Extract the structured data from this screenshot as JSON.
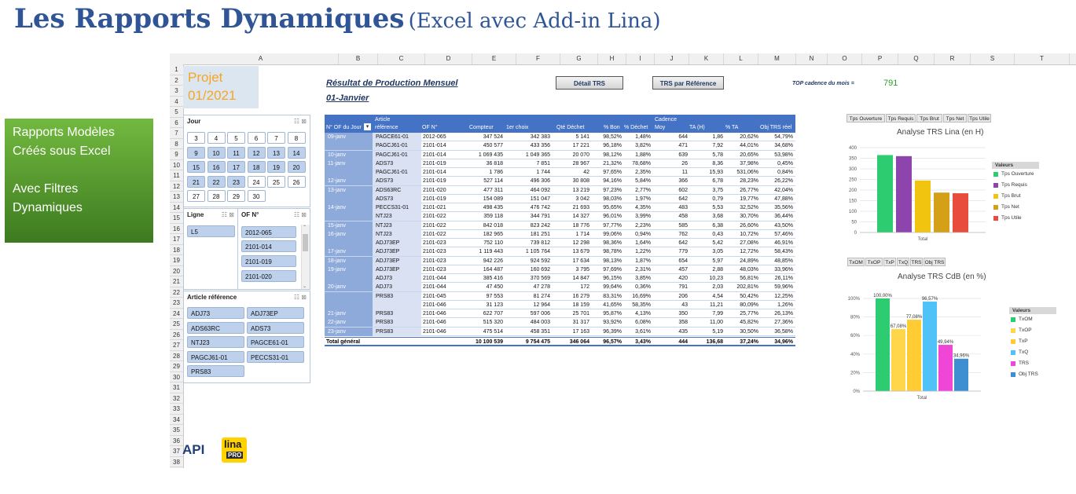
{
  "title": {
    "main": "Les Rapports Dynamiques",
    "sub": "(Excel avec Add-in Lina)"
  },
  "green_box": {
    "line1": "Rapports Modèles",
    "line2": "Créés sous Excel",
    "line3": "Avec Filtres",
    "line4": "Dynamiques"
  },
  "columns": [
    "A",
    "B",
    "C",
    "D",
    "E",
    "F",
    "G",
    "H",
    "I",
    "J",
    "K",
    "L",
    "M",
    "N",
    "O",
    "P",
    "Q",
    "R",
    "S",
    "T"
  ],
  "rows": [
    "1",
    "2",
    "3",
    "4",
    "5",
    "6",
    "7",
    "8",
    "9",
    "10",
    "11",
    "12",
    "13",
    "14",
    "15",
    "16",
    "17",
    "18",
    "19",
    "20",
    "21",
    "22",
    "23",
    "24",
    "25",
    "26",
    "27",
    "28",
    "29",
    "30",
    "31",
    "32",
    "33",
    "34",
    "35",
    "36",
    "37",
    "38"
  ],
  "projet": {
    "line1": "Projet",
    "line2": "01/2021"
  },
  "slicers": {
    "jour": {
      "title": "Jour",
      "items": [
        "3",
        "4",
        "5",
        "6",
        "7",
        "8",
        "9",
        "10",
        "11",
        "12",
        "13",
        "14",
        "15",
        "16",
        "17",
        "18",
        "19",
        "20",
        "21",
        "22",
        "23",
        "24",
        "25",
        "26",
        "27",
        "28",
        "29",
        "30"
      ]
    },
    "ligne": {
      "title": "Ligne",
      "items": [
        "L5"
      ]
    },
    "of": {
      "title": "OF N°",
      "items": [
        "2012-065",
        "2101-014",
        "2101-019",
        "2101-020"
      ]
    },
    "article": {
      "title": "Article référence",
      "items": [
        "ADJ73",
        "ADJ73EP",
        "ADS63RC",
        "ADS73",
        "NTJ23",
        "PAGCE61-01",
        "PAGCJ61-01",
        "PECCS31-01",
        "PRS83"
      ]
    }
  },
  "report": {
    "title": "Résultat de Production Mensuel",
    "date": "01-Janvier"
  },
  "buttons": {
    "detail": "Détail TRS",
    "ref": "TRS par Référence"
  },
  "top": {
    "label": "TOP cadence du mois =",
    "value": "791"
  },
  "pivot": {
    "headers": {
      "of_jour": "N° OF du Jour",
      "article1": "Article",
      "article2": "référence",
      "of": "OF N°",
      "compteur": "Compteur",
      "premier": "1er choix",
      "dechet": "Qté Déchet",
      "bon": "% Bon",
      "pdechet": "% Déchet",
      "cadence1": "Cadence",
      "cadence2": "Moy",
      "ta": "TA (H)",
      "pta": "% TA",
      "obj": "Obj TRS réel"
    },
    "rows": [
      [
        "09-janv",
        "PAGCE61-01",
        "2012-065",
        "347 524",
        "342 383",
        "5 141",
        "98,52%",
        "1,48%",
        "644",
        "1,86",
        "20,62%",
        "54,79%"
      ],
      [
        "",
        "PAGCJ61-01",
        "2101-014",
        "450 577",
        "433 356",
        "17 221",
        "96,18%",
        "3,82%",
        "471",
        "7,92",
        "44,01%",
        "34,68%"
      ],
      [
        "10-janv",
        "PAGCJ61-01",
        "2101-014",
        "1 069 435",
        "1 049 365",
        "20 070",
        "98,12%",
        "1,88%",
        "639",
        "5,78",
        "20,65%",
        "53,98%"
      ],
      [
        "11-janv",
        "ADS73",
        "2101-019",
        "36 818",
        "7 851",
        "28 967",
        "21,32%",
        "78,68%",
        "26",
        "8,36",
        "37,98%",
        "0,45%"
      ],
      [
        "",
        "PAGCJ61-01",
        "2101-014",
        "1 786",
        "1 744",
        "42",
        "97,65%",
        "2,35%",
        "11",
        "15,93",
        "531,06%",
        "0,84%"
      ],
      [
        "12-janv",
        "ADS73",
        "2101-019",
        "527 114",
        "496 306",
        "30 808",
        "94,16%",
        "5,84%",
        "366",
        "6,78",
        "28,23%",
        "26,22%"
      ],
      [
        "13-janv",
        "ADS63RC",
        "2101-020",
        "477 311",
        "464 092",
        "13 219",
        "97,23%",
        "2,77%",
        "602",
        "3,75",
        "26,77%",
        "42,04%"
      ],
      [
        "",
        "ADS73",
        "2101-019",
        "154 089",
        "151 047",
        "3 042",
        "98,03%",
        "1,97%",
        "642",
        "0,79",
        "19,77%",
        "47,88%"
      ],
      [
        "14-janv",
        "PECCS31-01",
        "2101-021",
        "498 435",
        "476 742",
        "21 693",
        "95,65%",
        "4,35%",
        "483",
        "5,53",
        "32,52%",
        "35,56%"
      ],
      [
        "",
        "NTJ23",
        "2101-022",
        "359 118",
        "344 791",
        "14 327",
        "96,01%",
        "3,99%",
        "458",
        "3,68",
        "30,70%",
        "36,44%"
      ],
      [
        "15-janv",
        "NTJ23",
        "2101-022",
        "842 018",
        "823 242",
        "18 776",
        "97,77%",
        "2,23%",
        "585",
        "6,38",
        "26,60%",
        "43,50%"
      ],
      [
        "16-janv",
        "NTJ23",
        "2101-022",
        "182 965",
        "181 251",
        "1 714",
        "99,06%",
        "0,94%",
        "762",
        "0,43",
        "10,72%",
        "57,46%"
      ],
      [
        "",
        "ADJ73EP",
        "2101-023",
        "752 110",
        "739 812",
        "12 298",
        "98,36%",
        "1,64%",
        "642",
        "5,42",
        "27,08%",
        "46,91%"
      ],
      [
        "17-janv",
        "ADJ73EP",
        "2101-023",
        "1 119 443",
        "1 105 764",
        "13 679",
        "98,78%",
        "1,22%",
        "779",
        "3,05",
        "12,72%",
        "58,43%"
      ],
      [
        "18-janv",
        "ADJ73EP",
        "2101-023",
        "942 226",
        "924 592",
        "17 634",
        "98,13%",
        "1,87%",
        "654",
        "5,97",
        "24,89%",
        "48,85%"
      ],
      [
        "19-janv",
        "ADJ73EP",
        "2101-023",
        "164 487",
        "160 692",
        "3 795",
        "97,69%",
        "2,31%",
        "457",
        "2,88",
        "48,03%",
        "33,96%"
      ],
      [
        "",
        "ADJ73",
        "2101-044",
        "385 416",
        "370 569",
        "14 847",
        "96,15%",
        "3,85%",
        "420",
        "10,23",
        "56,81%",
        "26,11%"
      ],
      [
        "20-janv",
        "ADJ73",
        "2101-044",
        "47 450",
        "47 278",
        "172",
        "99,64%",
        "0,36%",
        "791",
        "2,03",
        "202,81%",
        "59,96%"
      ],
      [
        "",
        "PRS83",
        "2101-045",
        "97 553",
        "81 274",
        "16 279",
        "83,31%",
        "16,69%",
        "206",
        "4,54",
        "50,42%",
        "12,25%"
      ],
      [
        "",
        "",
        "2101-046",
        "31 123",
        "12 964",
        "18 159",
        "41,65%",
        "58,35%",
        "43",
        "11,21",
        "80,09%",
        "1,26%"
      ],
      [
        "21-janv",
        "PRS83",
        "2101-046",
        "622 707",
        "597 006",
        "25 701",
        "95,87%",
        "4,13%",
        "350",
        "7,99",
        "25,77%",
        "26,13%"
      ],
      [
        "22-janv",
        "PRS83",
        "2101-046",
        "515 320",
        "484 003",
        "31 317",
        "93,92%",
        "6,08%",
        "358",
        "11,00",
        "45,82%",
        "27,36%"
      ],
      [
        "23-janv",
        "PRS83",
        "2101-046",
        "475 514",
        "458 351",
        "17 163",
        "96,39%",
        "3,61%",
        "435",
        "5,19",
        "30,50%",
        "36,58%"
      ]
    ],
    "total": [
      "Total général",
      "10 100 539",
      "9 754 475",
      "346 064",
      "96,57%",
      "3,43%",
      "444",
      "136,68",
      "37,24%",
      "34,96%"
    ]
  },
  "chart1_tabs": [
    "Tps Ouverture",
    "Tps Requis",
    "Tps Brut",
    "Tps Net",
    "Tps Utile"
  ],
  "chart2_tabs": [
    "TxOM",
    "TxOP",
    "TxP",
    "TxQ",
    "TRS",
    "Obj TRS"
  ],
  "chart_data": [
    {
      "type": "bar",
      "title": "Analyse TRS Lina (en H)",
      "categories": [
        "Total"
      ],
      "series": [
        {
          "name": "Tps Ouverture",
          "values": [
            365
          ]
        },
        {
          "name": "Tps Requis",
          "values": [
            360
          ]
        },
        {
          "name": "Tps Brut",
          "values": [
            245
          ]
        },
        {
          "name": "Tps Net",
          "values": [
            188
          ]
        },
        {
          "name": "Tps Utile",
          "values": [
            185
          ]
        }
      ],
      "ylim": [
        0,
        400
      ],
      "yticks": [
        "0",
        "50",
        "100",
        "150",
        "200",
        "250",
        "300",
        "350",
        "400"
      ],
      "legend_title": "Valeurs",
      "legend": "right",
      "colors": [
        "#2ecc71",
        "#8e44ad",
        "#f1c40f",
        "#d4a017",
        "#e74c3c"
      ]
    },
    {
      "type": "bar",
      "title": "Analyse TRS CdB (en %)",
      "categories": [
        "Total"
      ],
      "series": [
        {
          "name": "TxOM",
          "values": [
            100.0
          ],
          "label": "100,00%"
        },
        {
          "name": "TxOP",
          "values": [
            67.08
          ],
          "label": "67,08%"
        },
        {
          "name": "TxP",
          "values": [
            77.08
          ],
          "label": "77,08%"
        },
        {
          "name": "TxQ",
          "values": [
            96.57
          ],
          "label": "96,57%"
        },
        {
          "name": "TRS",
          "values": [
            49.94
          ],
          "label": "49,94%"
        },
        {
          "name": "Obj TRS",
          "values": [
            34.96
          ],
          "label": "34,96%"
        }
      ],
      "ylim": [
        0,
        100
      ],
      "yticks": [
        "0%",
        "20%",
        "40%",
        "60%",
        "80%",
        "100%"
      ],
      "legend_title": "Valeurs",
      "legend": "right",
      "colors": [
        "#2ecc71",
        "#ffd54a",
        "#ffcc33",
        "#4fc3f7",
        "#f046d8",
        "#3d8fd1"
      ]
    }
  ],
  "logo": {
    "api": "API",
    "lina": "lina",
    "pro": "PRO"
  }
}
